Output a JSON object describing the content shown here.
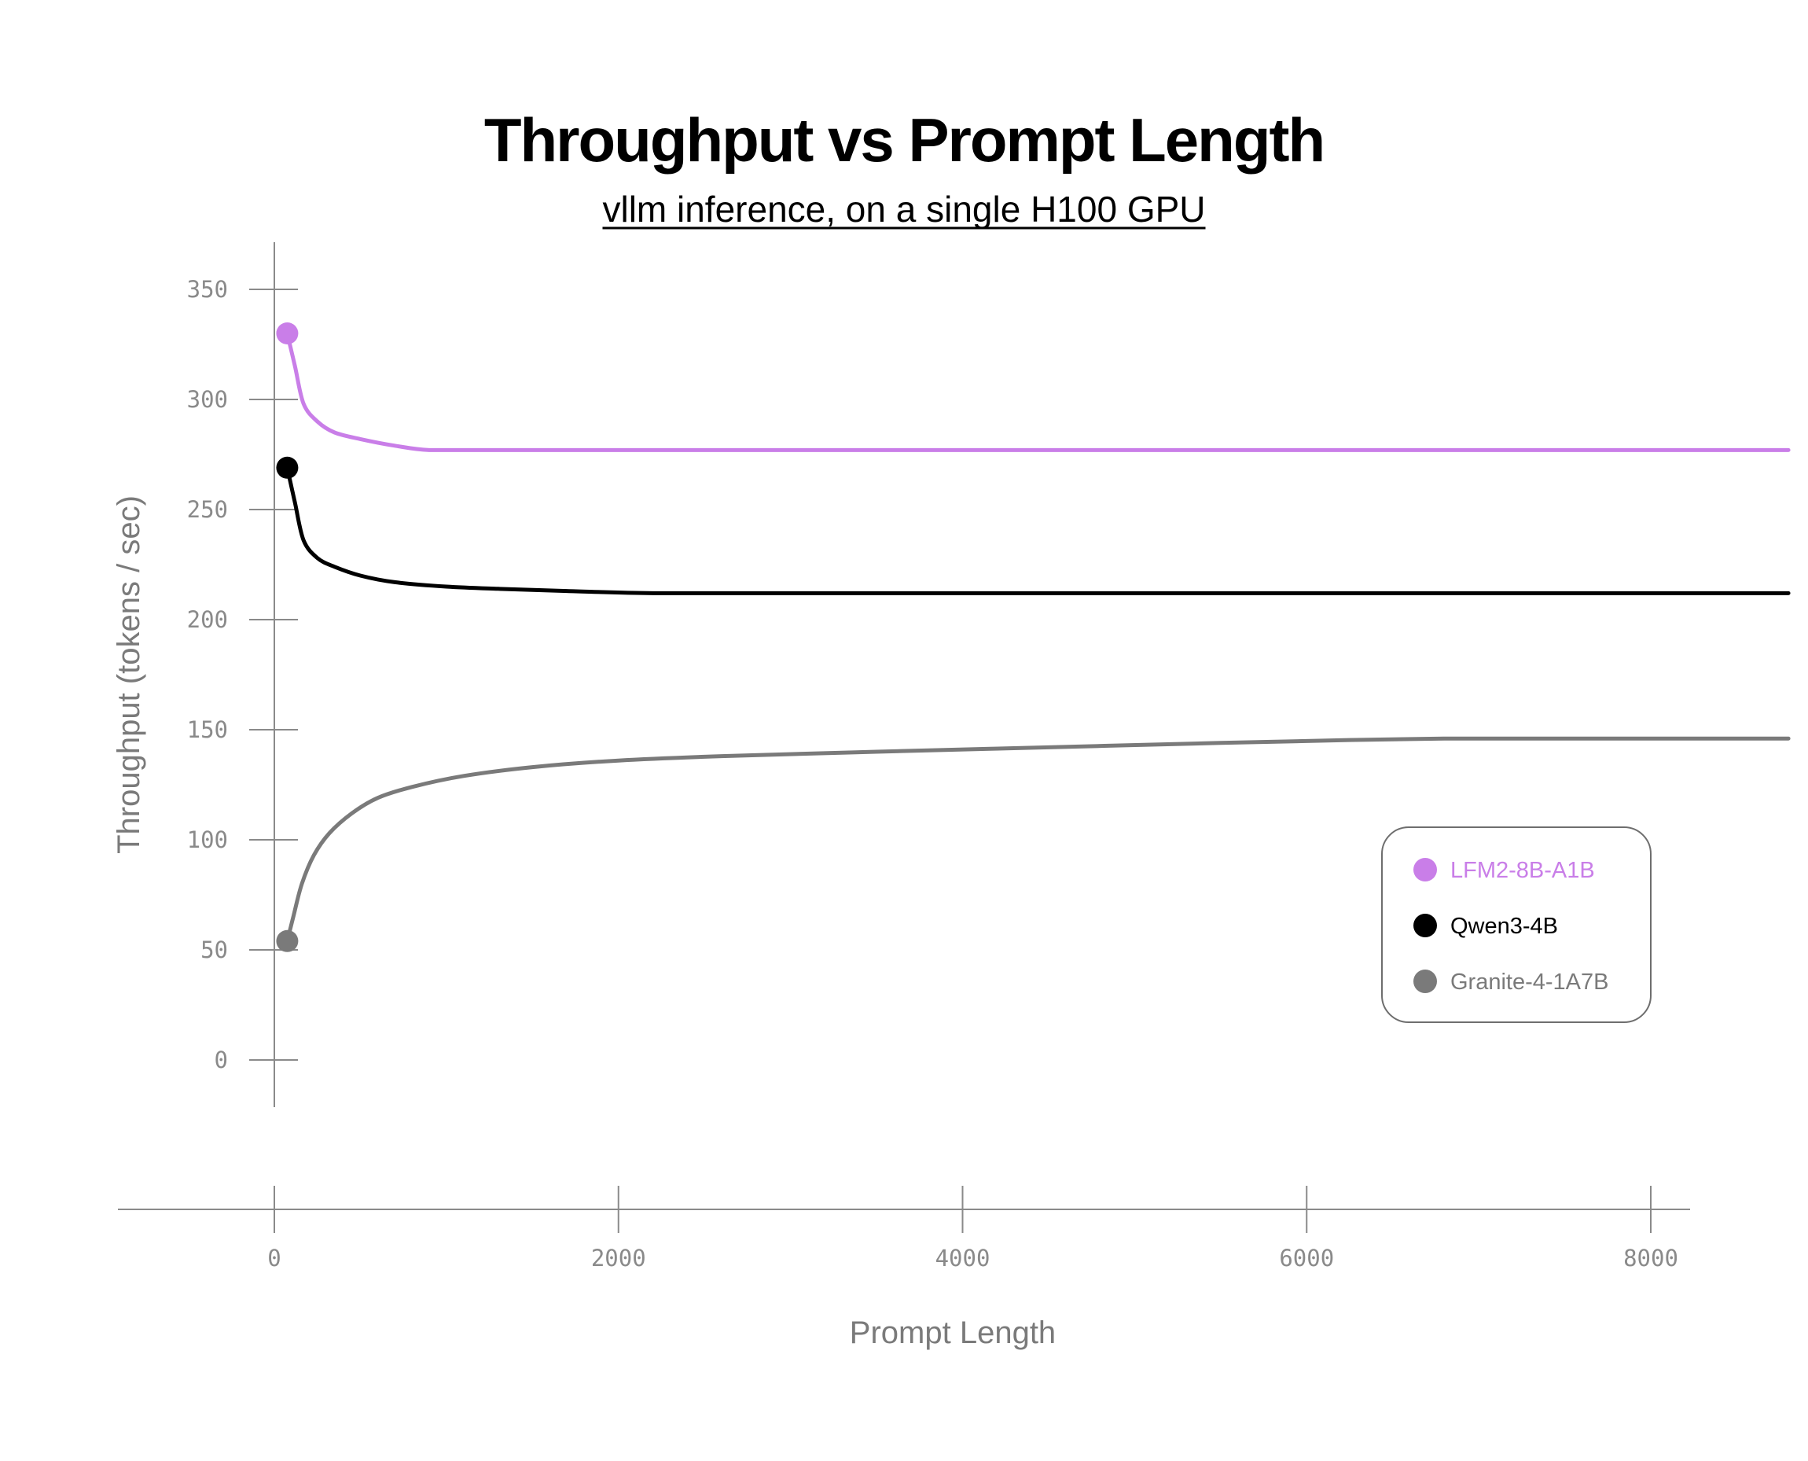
{
  "chart_data": {
    "type": "line",
    "title": "Throughput vs Prompt Length",
    "subtitle": "vllm inference, on a single H100 GPU",
    "xlabel": "Prompt Length",
    "ylabel": "Throughput (tokens / sec)",
    "xlim": [
      0,
      8000
    ],
    "ylim": [
      0,
      350
    ],
    "x_ticks": [
      0,
      2000,
      4000,
      6000,
      8000
    ],
    "y_ticks": [
      0,
      50,
      100,
      150,
      200,
      250,
      300,
      350
    ],
    "grid": false,
    "legend_position": "right",
    "series": [
      {
        "name": "LFM2-8B-A1B",
        "color": "#c97ee8",
        "x": [
          75,
          120,
          170,
          250,
          350,
          500,
          700,
          900,
          1200,
          2000,
          4000,
          6000,
          8000,
          8800
        ],
        "y": [
          330,
          315,
          298,
          290,
          285,
          282,
          279,
          277,
          277,
          277,
          277,
          277,
          277,
          277
        ]
      },
      {
        "name": "Qwen3-4B",
        "color": "#000000",
        "x": [
          75,
          120,
          170,
          250,
          350,
          500,
          700,
          1000,
          1300,
          1700,
          2200,
          3000,
          5000,
          8000,
          8800
        ],
        "y": [
          269,
          253,
          236,
          228,
          224,
          220,
          217,
          215,
          214,
          213,
          212,
          212,
          212,
          212,
          212
        ]
      },
      {
        "name": "Granite-4-1A7B",
        "color": "#7a7a7a",
        "x": [
          75,
          110,
          160,
          230,
          320,
          450,
          600,
          800,
          1100,
          1500,
          2000,
          2600,
          3500,
          4500,
          5500,
          6800,
          8000,
          8800
        ],
        "y": [
          54,
          65,
          80,
          93,
          103,
          112,
          119,
          124,
          129,
          133,
          136,
          138,
          140,
          142,
          144,
          146,
          146,
          146
        ]
      }
    ]
  }
}
